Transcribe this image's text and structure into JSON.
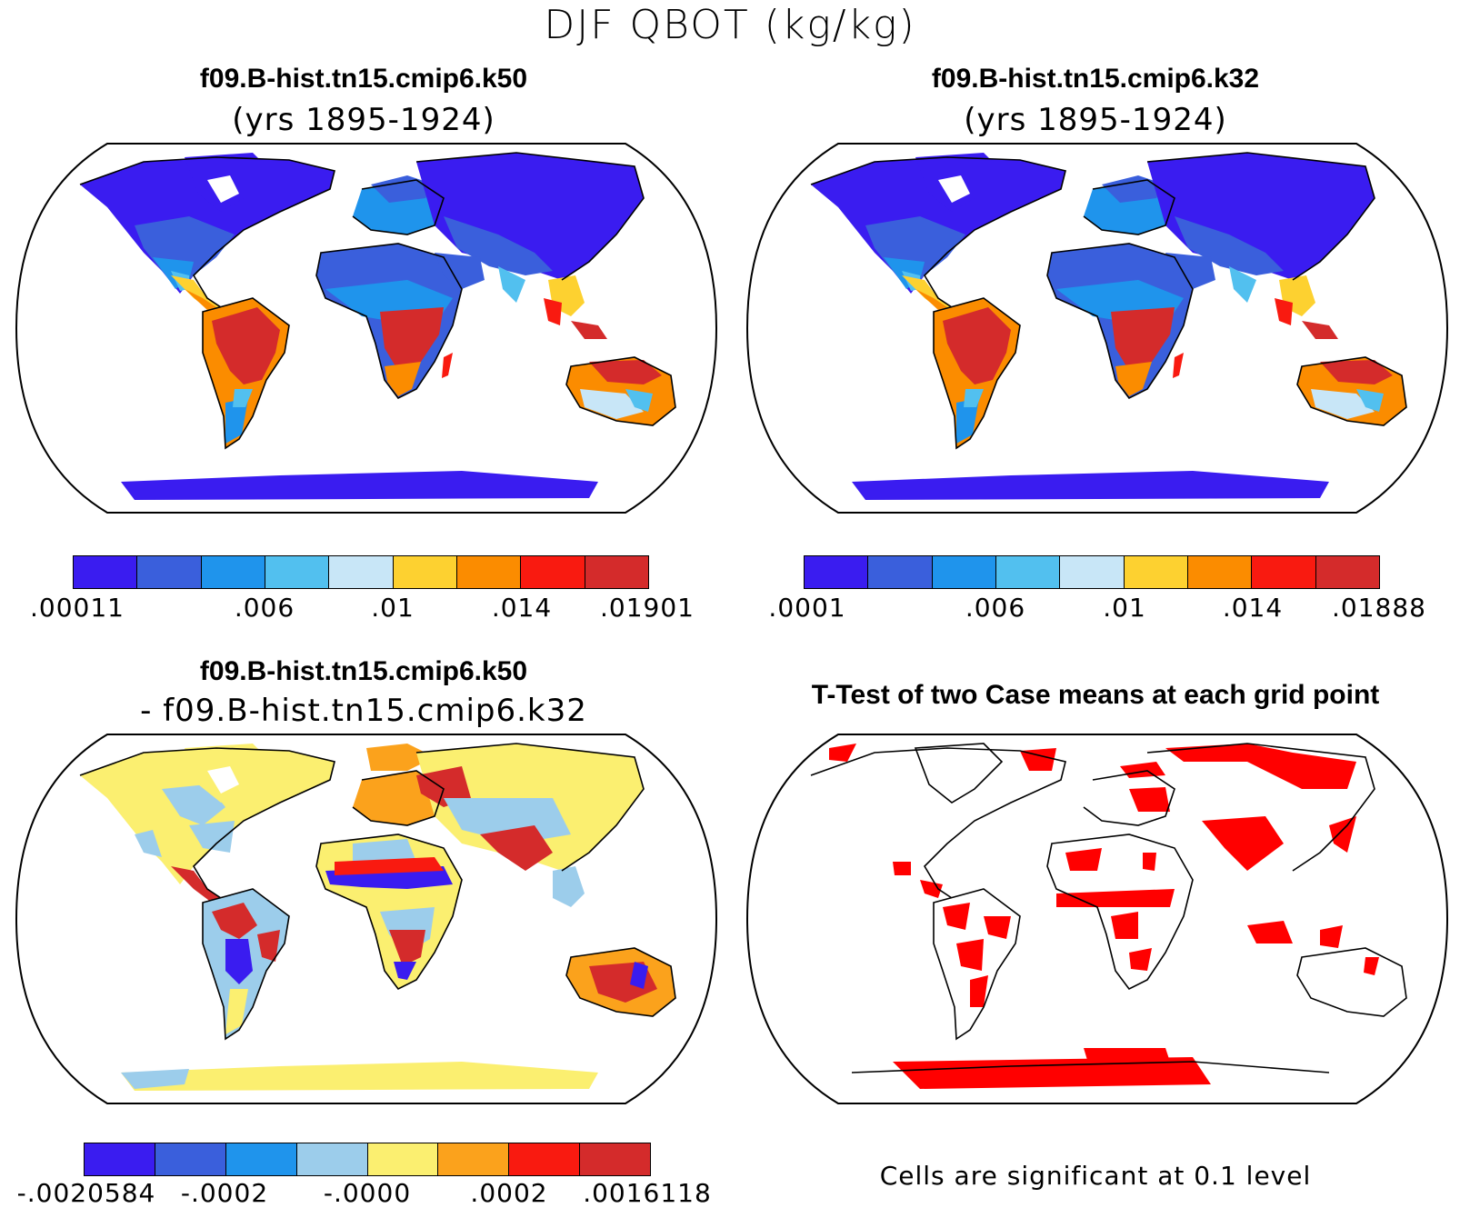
{
  "figure_title": "DJF QBOT (kg/kg)",
  "panels": {
    "top_left": {
      "title": "f09.B-hist.tn15.cmip6.k50",
      "subtitle": "(yrs 1895-1924)",
      "colorbar": {
        "colors": [
          "#3a1cf0",
          "#3a5fdc",
          "#1f94ec",
          "#52c0ef",
          "#c8e6f7",
          "#fdd130",
          "#fb8c00",
          "#f91a10",
          "#d42b2b"
        ],
        "tick_labels": [
          ".00011",
          ".006",
          ".01",
          ".014",
          ".01901"
        ]
      }
    },
    "top_right": {
      "title": "f09.B-hist.tn15.cmip6.k32",
      "subtitle": "(yrs 1895-1924)",
      "colorbar": {
        "colors": [
          "#3a1cf0",
          "#3a5fdc",
          "#1f94ec",
          "#52c0ef",
          "#c8e6f7",
          "#fdd130",
          "#fb8c00",
          "#f91a10",
          "#d42b2b"
        ],
        "tick_labels": [
          ".0001",
          ".006",
          ".01",
          ".014",
          ".01888"
        ]
      }
    },
    "bottom_left": {
      "title": "f09.B-hist.tn15.cmip6.k50",
      "subtitle": "- f09.B-hist.tn15.cmip6.k32",
      "colorbar": {
        "colors": [
          "#3a1cf0",
          "#3a5fdc",
          "#1f94ec",
          "#9ccdeb",
          "#fbef70",
          "#fba21c",
          "#f91a10",
          "#d42b2b"
        ],
        "tick_labels": [
          "-.0020584",
          "-.0002",
          "-.0000",
          ".0002",
          ".0016118"
        ]
      }
    },
    "bottom_right": {
      "title": "T-Test of two Case means at each grid point",
      "note": "Cells are significant at 0.1 level",
      "significant_color": "#ff0000"
    }
  }
}
